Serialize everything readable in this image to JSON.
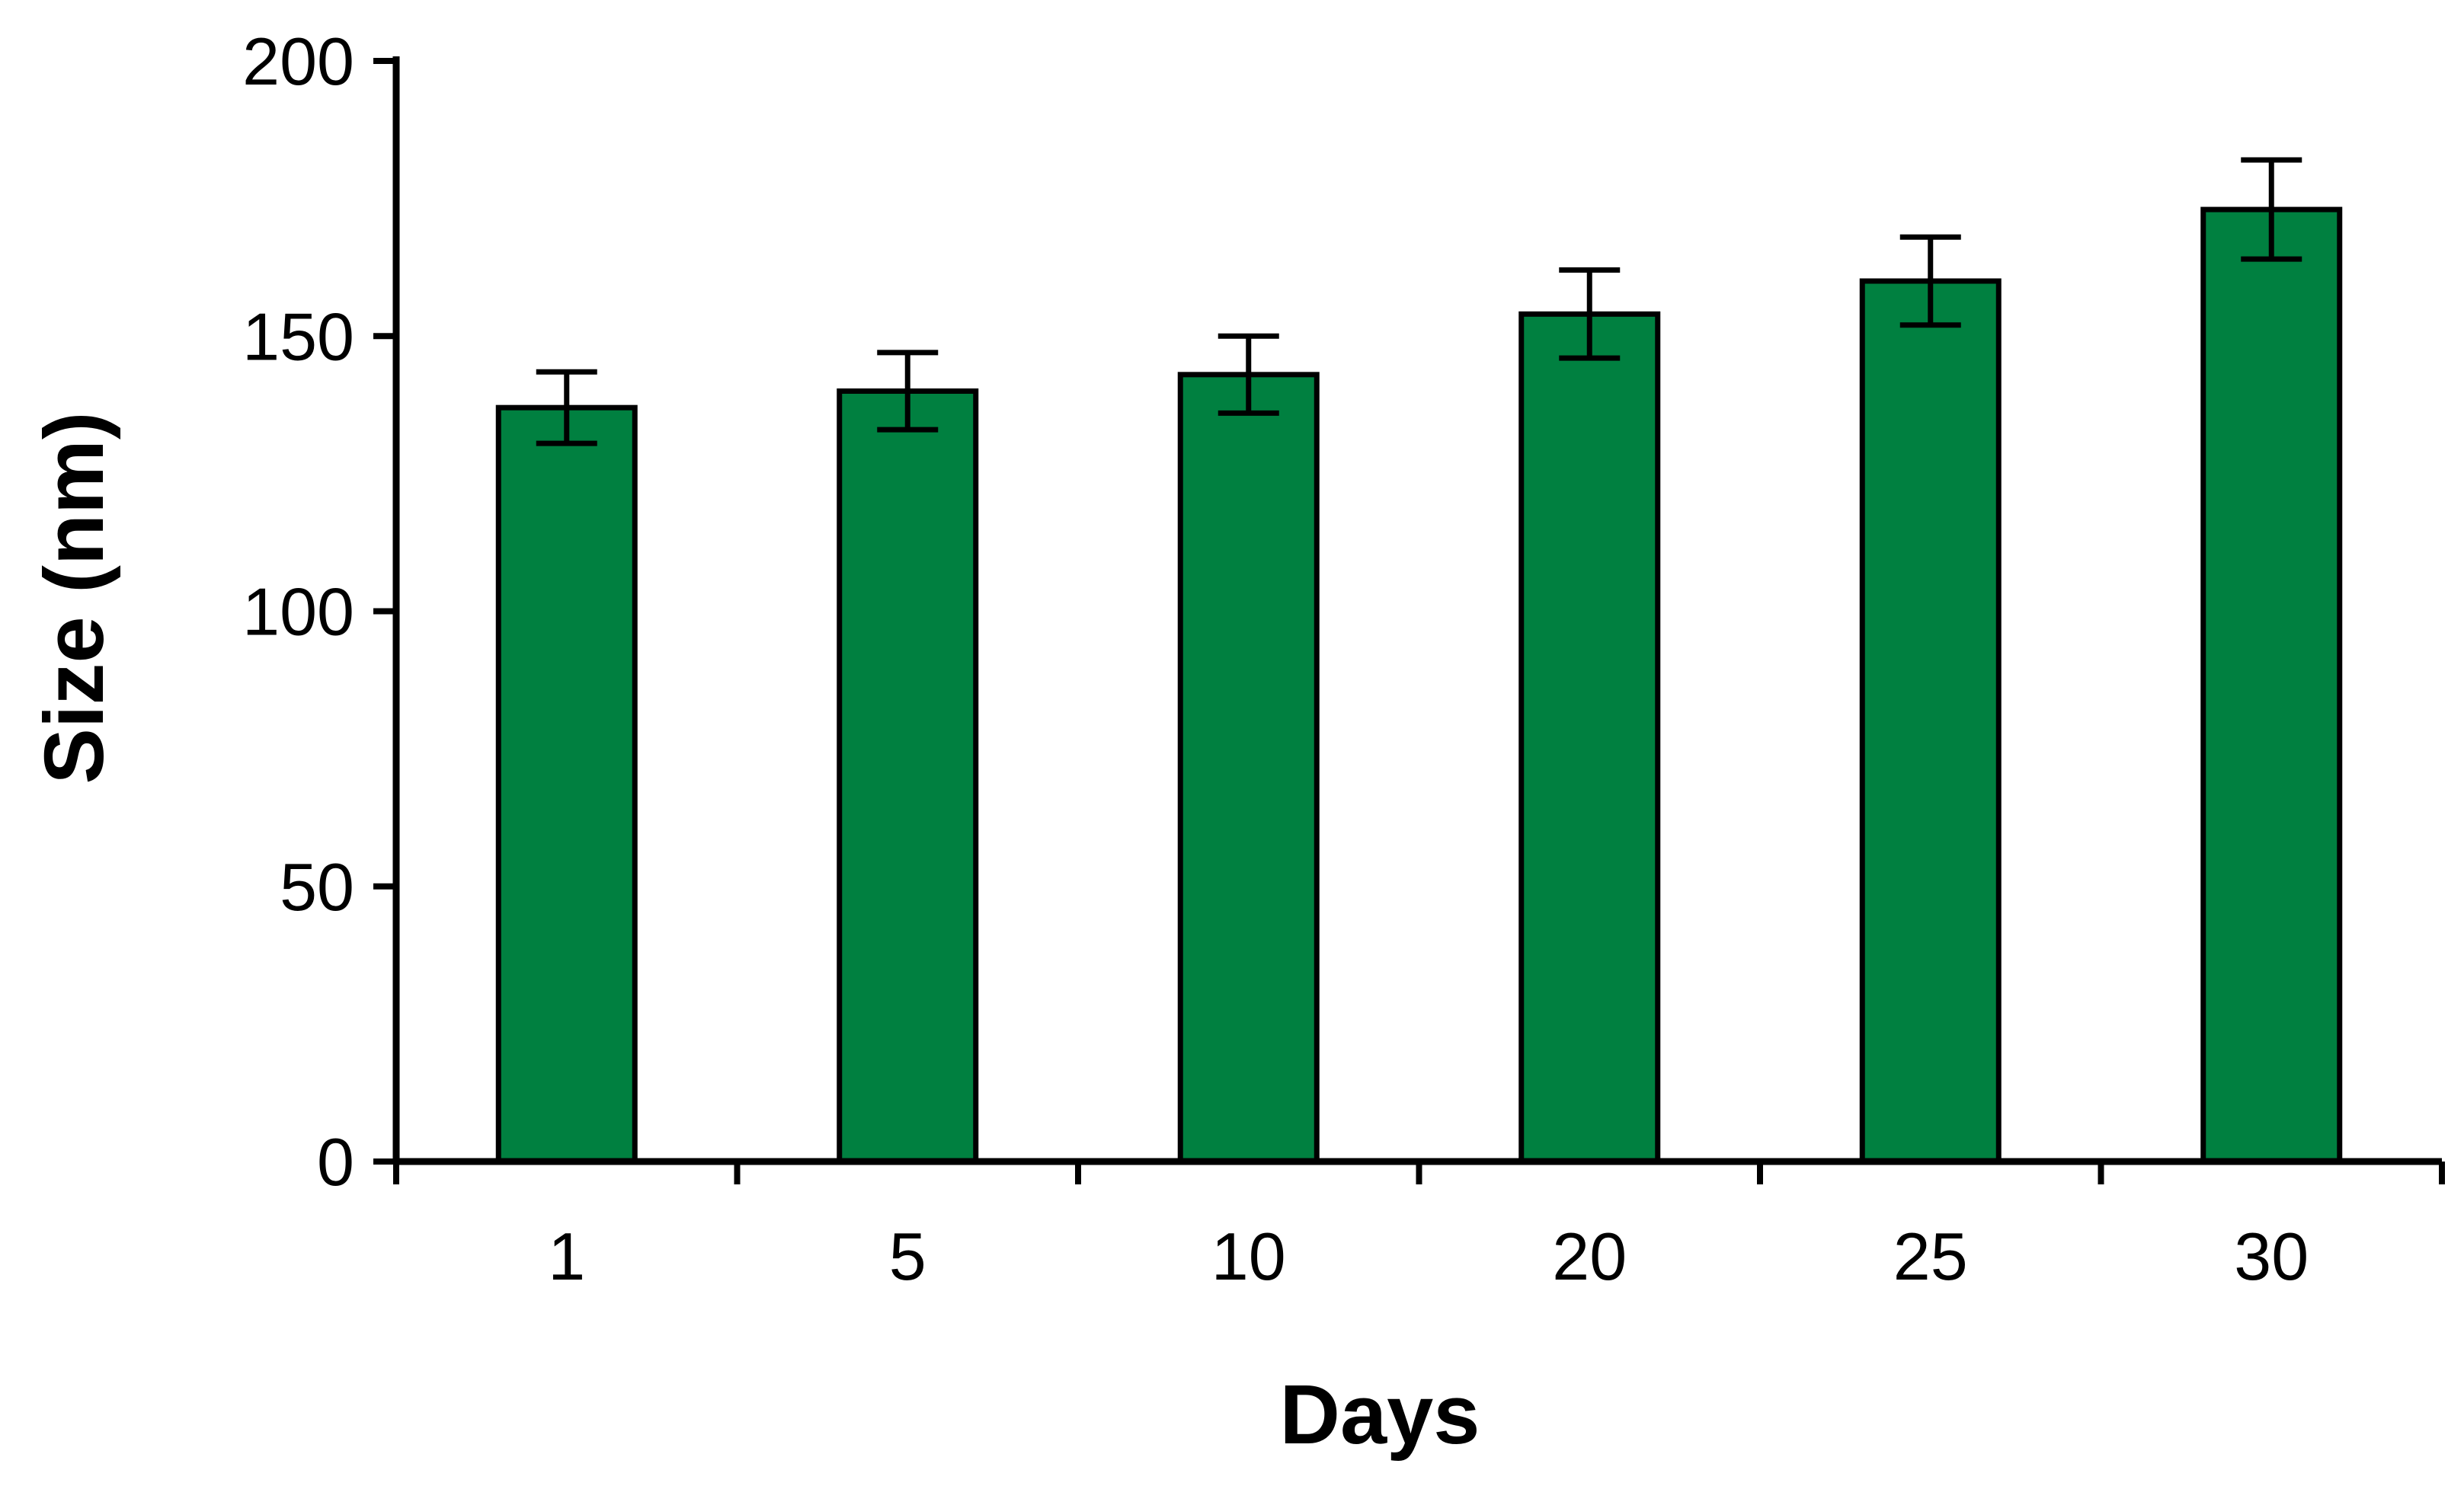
{
  "chart_data": {
    "type": "bar",
    "title": "",
    "xlabel": "Days",
    "ylabel": "Size (nm)",
    "categories": [
      "1",
      "5",
      "10",
      "20",
      "25",
      "30"
    ],
    "values": [
      137,
      140,
      143,
      154,
      160,
      173
    ],
    "errors": [
      6.5,
      7,
      7,
      8,
      8,
      9
    ],
    "ylim": [
      0,
      200
    ],
    "yticks": [
      0,
      50,
      100,
      150,
      200
    ],
    "grid": false,
    "legend": "none",
    "colors": {
      "bar_fill": "#008040",
      "bar_stroke": "#000000",
      "axis": "#000000",
      "error_bar": "#000000"
    }
  }
}
